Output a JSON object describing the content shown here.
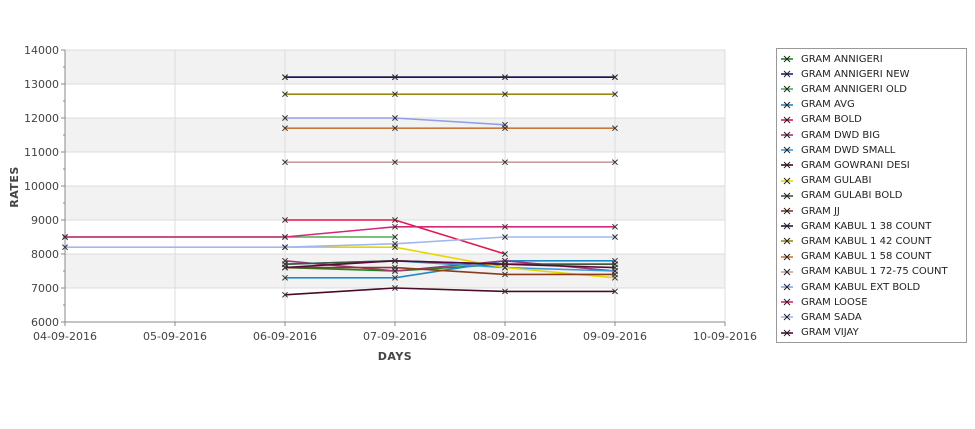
{
  "chart_data": {
    "type": "line",
    "xlabel": "DAYS",
    "ylabel": "RATES",
    "x_ticks": [
      "04-09-2016",
      "05-09-2016",
      "06-09-2016",
      "07-09-2016",
      "08-09-2016",
      "09-09-2016",
      "10-09-2016"
    ],
    "y_ticks": [
      6000,
      7000,
      8000,
      9000,
      10000,
      11000,
      12000,
      13000,
      14000
    ],
    "ylim": [
      6000,
      14000
    ],
    "grid": true,
    "legend_position": "right",
    "series": [
      {
        "name": "GRAM ANNIGERI",
        "color": "#1b8a1b",
        "points": [
          [
            "06-09-2016",
            7600
          ],
          [
            "07-09-2016",
            7500
          ],
          [
            "08-09-2016",
            7700
          ],
          [
            "09-09-2016",
            7700
          ]
        ]
      },
      {
        "name": "GRAM ANNIGERI NEW",
        "color": "#1a237e",
        "points": [
          [
            "06-09-2016",
            13200
          ],
          [
            "07-09-2016",
            13200
          ],
          [
            "08-09-2016",
            13200
          ],
          [
            "09-09-2016",
            13200
          ]
        ]
      },
      {
        "name": "GRAM ANNIGERI OLD",
        "color": "#4caf50",
        "points": [
          [
            "04-09-2016",
            8500
          ],
          [
            "06-09-2016",
            8500
          ],
          [
            "07-09-2016",
            8500
          ]
        ]
      },
      {
        "name": "GRAM AVG",
        "color": "#1e88c8",
        "points": [
          [
            "06-09-2016",
            7300
          ],
          [
            "07-09-2016",
            7300
          ],
          [
            "08-09-2016",
            7800
          ],
          [
            "09-09-2016",
            7800
          ]
        ]
      },
      {
        "name": "GRAM BOLD",
        "color": "#e0174b",
        "points": [
          [
            "06-09-2016",
            9000
          ],
          [
            "07-09-2016",
            9000
          ],
          [
            "08-09-2016",
            8000
          ]
        ]
      },
      {
        "name": "GRAM DWD BIG",
        "color": "#a0357a",
        "points": [
          [
            "06-09-2016",
            7800
          ],
          [
            "07-09-2016",
            7500
          ],
          [
            "08-09-2016",
            7800
          ],
          [
            "09-09-2016",
            7500
          ]
        ]
      },
      {
        "name": "GRAM DWD SMALL",
        "color": "#3a9ad9",
        "points": [
          [
            "06-09-2016",
            7700
          ],
          [
            "07-09-2016",
            7800
          ],
          [
            "08-09-2016",
            7600
          ],
          [
            "09-09-2016",
            7500
          ]
        ]
      },
      {
        "name": "GRAM GOWRANI DESI",
        "color": "#4a0a2a",
        "points": [
          [
            "06-09-2016",
            6800
          ],
          [
            "07-09-2016",
            7000
          ],
          [
            "08-09-2016",
            6900
          ],
          [
            "09-09-2016",
            6900
          ]
        ]
      },
      {
        "name": "GRAM GULABI",
        "color": "#e6d600",
        "points": [
          [
            "06-09-2016",
            8200
          ],
          [
            "07-09-2016",
            8200
          ],
          [
            "08-09-2016",
            7600
          ],
          [
            "09-09-2016",
            7300
          ]
        ]
      },
      {
        "name": "GRAM GULABI BOLD",
        "color": "#3a5a3a",
        "points": [
          [
            "06-09-2016",
            7700
          ],
          [
            "07-09-2016",
            7800
          ],
          [
            "08-09-2016",
            7700
          ],
          [
            "09-09-2016",
            7700
          ]
        ]
      },
      {
        "name": "GRAM JJ",
        "color": "#8b3a1a",
        "points": [
          [
            "06-09-2016",
            7600
          ],
          [
            "07-09-2016",
            7600
          ],
          [
            "08-09-2016",
            7400
          ],
          [
            "09-09-2016",
            7400
          ]
        ]
      },
      {
        "name": "GRAM KABUL 1 38 COUNT",
        "color": "#1a1a4a",
        "points": [
          [
            "06-09-2016",
            13200
          ],
          [
            "07-09-2016",
            13200
          ],
          [
            "08-09-2016",
            13200
          ],
          [
            "09-09-2016",
            13200
          ]
        ]
      },
      {
        "name": "GRAM KABUL 1 42 COUNT",
        "color": "#9a8a10",
        "points": [
          [
            "06-09-2016",
            12700
          ],
          [
            "07-09-2016",
            12700
          ],
          [
            "08-09-2016",
            12700
          ],
          [
            "09-09-2016",
            12700
          ]
        ]
      },
      {
        "name": "GRAM KABUL 1 58 COUNT",
        "color": "#c8783a",
        "points": [
          [
            "06-09-2016",
            11700
          ],
          [
            "07-09-2016",
            11700
          ],
          [
            "08-09-2016",
            11700
          ],
          [
            "09-09-2016",
            11700
          ]
        ]
      },
      {
        "name": "GRAM KABUL 1 72-75 COUNT",
        "color": "#c8a0a0",
        "points": [
          [
            "06-09-2016",
            10700
          ],
          [
            "07-09-2016",
            10700
          ],
          [
            "08-09-2016",
            10700
          ],
          [
            "09-09-2016",
            10700
          ]
        ]
      },
      {
        "name": "GRAM KABUL EXT BOLD",
        "color": "#8fa0e8",
        "points": [
          [
            "06-09-2016",
            12000
          ],
          [
            "07-09-2016",
            12000
          ],
          [
            "08-09-2016",
            11800
          ]
        ]
      },
      {
        "name": "GRAM LOOSE",
        "color": "#d4287a",
        "points": [
          [
            "04-09-2016",
            8500
          ],
          [
            "06-09-2016",
            8500
          ],
          [
            "07-09-2016",
            8800
          ],
          [
            "08-09-2016",
            8800
          ],
          [
            "09-09-2016",
            8800
          ]
        ]
      },
      {
        "name": "GRAM SADA",
        "color": "#a0b8f0",
        "points": [
          [
            "04-09-2016",
            8200
          ],
          [
            "06-09-2016",
            8200
          ],
          [
            "07-09-2016",
            8300
          ],
          [
            "08-09-2016",
            8500
          ],
          [
            "09-09-2016",
            8500
          ]
        ]
      },
      {
        "name": "GRAM VIJAY",
        "color": "#5a0a3a",
        "points": [
          [
            "06-09-2016",
            7600
          ],
          [
            "07-09-2016",
            7800
          ],
          [
            "08-09-2016",
            7700
          ],
          [
            "09-09-2016",
            7600
          ]
        ]
      }
    ]
  }
}
